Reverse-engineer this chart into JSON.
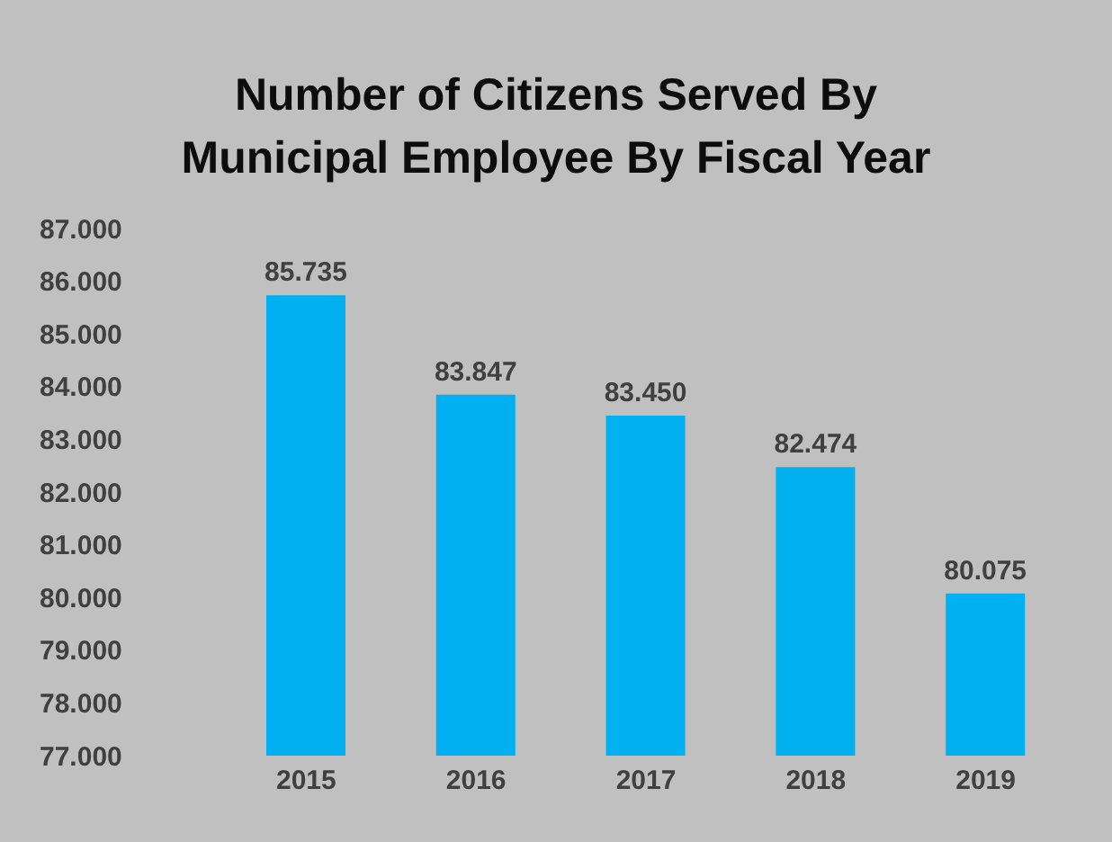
{
  "chart_data": {
    "type": "bar",
    "title": "Number of Citizens Served By Municipal Employee  By Fiscal Year",
    "categories": [
      "2015",
      "2016",
      "2017",
      "2018",
      "2019"
    ],
    "values": [
      85.735,
      83.847,
      83.45,
      82.474,
      80.075
    ],
    "value_labels": [
      "85.735",
      "83.847",
      "83.450",
      "82.474",
      "80.075"
    ],
    "color": "#00b0f0",
    "ylim": [
      77,
      87
    ],
    "yticks": [
      {
        "value": 77,
        "label": "77.000"
      },
      {
        "value": 78,
        "label": "78.000"
      },
      {
        "value": 79,
        "label": "79.000"
      },
      {
        "value": 80,
        "label": "80.000"
      },
      {
        "value": 81,
        "label": "81.000"
      },
      {
        "value": 82,
        "label": "82.000"
      },
      {
        "value": 83,
        "label": "83.000"
      },
      {
        "value": 84,
        "label": "84.000"
      },
      {
        "value": 85,
        "label": "85.000"
      },
      {
        "value": 86,
        "label": "86.000"
      },
      {
        "value": 87,
        "label": "87.000"
      }
    ],
    "grid": false,
    "legend": false
  }
}
